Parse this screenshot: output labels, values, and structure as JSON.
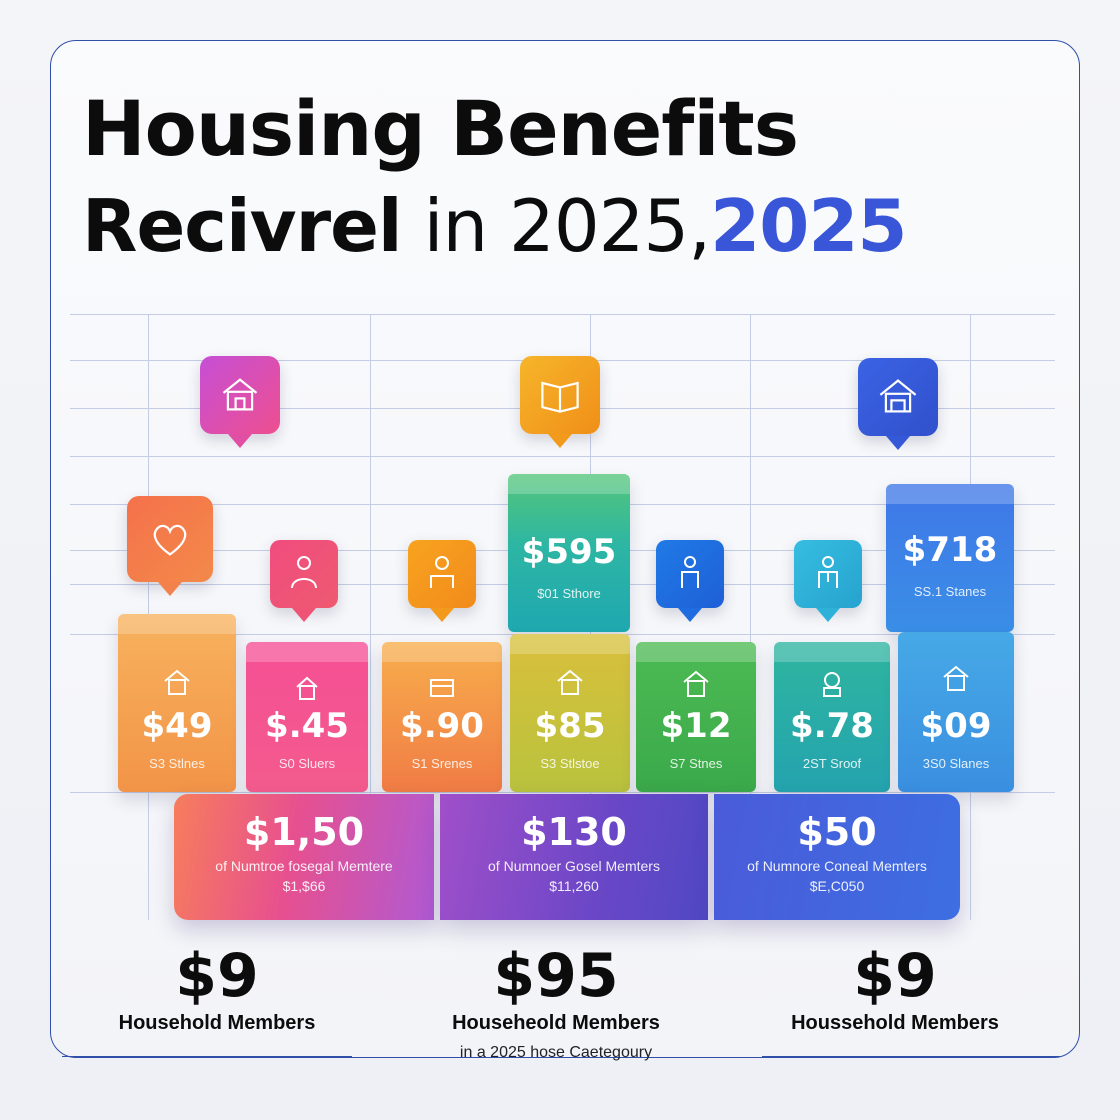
{
  "title": {
    "line1": "Housing Benefits",
    "line2_bold": "Recivrel",
    "line2_light": " in 2025,",
    "line2_accent": "2025"
  },
  "colors": {
    "accent": "#3a56d8",
    "frame": "#2f4fa8",
    "grid": "#c3cde4"
  },
  "pins": [
    {
      "icon": "house-icon",
      "color": "#d84fbf"
    },
    {
      "icon": "book-icon",
      "color": "#f3a321"
    },
    {
      "icon": "house-icon",
      "color": "#3b5fdc"
    },
    {
      "icon": "heart-icon",
      "color": "#f17a4c"
    },
    {
      "icon": "person-icon",
      "color": "#ee4d8c"
    },
    {
      "icon": "person-icon",
      "color": "#f5a11f"
    },
    {
      "icon": "person-icon",
      "color": "#1f6fe0"
    },
    {
      "icon": "person-icon",
      "color": "#2fb5d6"
    }
  ],
  "bars": [
    {
      "value": "$49",
      "label": "S3 Stlnes",
      "icon": "house-icon"
    },
    {
      "value": "$.45",
      "label": "S0 Sluers",
      "icon": "house-icon"
    },
    {
      "value": "$.90",
      "label": "S1 Srenes",
      "icon": "house-icon"
    },
    {
      "value": "$85",
      "label": "S3 Stlstoe",
      "icon": "house-icon"
    },
    {
      "value": "$12",
      "label": "S7 Stnes",
      "icon": "house-icon"
    },
    {
      "value": "$.78",
      "label": "2ST Sroof",
      "icon": "house-icon"
    },
    {
      "value": "$09",
      "label": "3S0 Slanes",
      "icon": "house-icon"
    }
  ],
  "tall_bars": [
    {
      "value": "$595",
      "label": "$01 Sthore"
    },
    {
      "value": "$718",
      "label": "SS.1 Stanes"
    }
  ],
  "panels": [
    {
      "value": "$1,50",
      "label": "of Numtroe fosegal Memtere",
      "sub": "$1,$66"
    },
    {
      "value": "$130",
      "label": "of Numnoer Gosel Memters",
      "sub": "$11,260"
    },
    {
      "value": "$50",
      "label": "of Numnore Coneal Memters",
      "sub": "$E,C050"
    }
  ],
  "stats": [
    {
      "value": "$9",
      "label": "Household Members"
    },
    {
      "value": "$95",
      "label": "Househeold Members"
    },
    {
      "value": "$9",
      "label": "Houssehold Members"
    }
  ],
  "footnote": "in a 2025 hose Caetegoury"
}
